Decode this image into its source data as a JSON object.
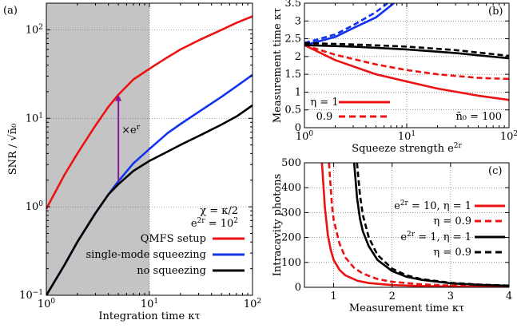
{
  "chart_data": [
    {
      "panel": "(a)",
      "type": "line",
      "xscale": "log",
      "yscale": "log",
      "xlim": [
        1,
        100
      ],
      "ylim": [
        0.1,
        200
      ],
      "xlabel": "Integration time κτ",
      "ylabel": "SNR / √n̄₀",
      "x_ticks": [
        {
          "v": 1,
          "b": "10",
          "e": "0"
        },
        {
          "v": 10,
          "b": "10",
          "e": "1"
        },
        {
          "v": 100,
          "b": "10",
          "e": "2"
        }
      ],
      "y_ticks": [
        {
          "v": 0.1,
          "b": "10",
          "e": "−1"
        },
        {
          "v": 1,
          "b": "10",
          "e": "0"
        },
        {
          "v": 10,
          "b": "10",
          "e": "1"
        },
        {
          "v": 100,
          "b": "10",
          "e": "2"
        }
      ],
      "shaded_region": [
        1,
        10
      ],
      "grid": "dotted",
      "annotations": [
        {
          "text": "χ = κ/2"
        },
        {
          "text": "e^{2r} = 10^2"
        }
      ],
      "arrow": {
        "x": 5,
        "y_from": 1.95,
        "y_to": 18.5,
        "label": "×e^r",
        "color": "#8a1a9b"
      },
      "legend_position": "bottom-right",
      "series": [
        {
          "name": "QMFS setup",
          "color": "#ee1111",
          "x": [
            1,
            1.5,
            2,
            3,
            4,
            5,
            7,
            10,
            15,
            20,
            30,
            50,
            70,
            100
          ],
          "y": [
            0.95,
            2.3,
            4.0,
            8.3,
            13.5,
            18.5,
            27.5,
            36.3,
            49,
            60,
            76,
            100,
            120,
            142
          ]
        },
        {
          "name": "single-mode squeezing",
          "color": "#1133ee",
          "x": [
            1,
            1.5,
            2,
            3,
            4,
            5,
            7,
            10,
            15,
            20,
            30,
            50,
            70,
            100
          ],
          "y": [
            0.1,
            0.22,
            0.4,
            0.85,
            1.38,
            1.95,
            3.1,
            4.5,
            6.8,
            8.6,
            11.8,
            17.5,
            23,
            31
          ]
        },
        {
          "name": "no squeezing",
          "color": "#000000",
          "x": [
            1,
            1.5,
            2,
            3,
            4,
            5,
            7,
            10,
            15,
            20,
            30,
            50,
            70,
            100
          ],
          "y": [
            0.1,
            0.22,
            0.4,
            0.85,
            1.38,
            1.8,
            2.55,
            3.3,
            4.2,
            5.0,
            6.3,
            8.5,
            10.5,
            14
          ]
        }
      ]
    },
    {
      "panel": "(b)",
      "type": "line",
      "xscale": "log",
      "yscale": "linear",
      "xlim": [
        1,
        100
      ],
      "ylim": [
        0,
        3.5
      ],
      "xlabel": "Squeeze strength e^{2r}",
      "ylabel": "Measurement time κτ",
      "x_ticks": [
        {
          "v": 1,
          "b": "10",
          "e": "0"
        },
        {
          "v": 10,
          "b": "10",
          "e": "1"
        },
        {
          "v": 100,
          "b": "10",
          "e": "2"
        }
      ],
      "y_ticks": [
        {
          "v": 0,
          "l": "0"
        },
        {
          "v": 0.5,
          "l": "0.5"
        },
        {
          "v": 1,
          "l": "1"
        },
        {
          "v": 1.5,
          "l": "1.5"
        },
        {
          "v": 2,
          "l": "2"
        },
        {
          "v": 2.5,
          "l": "2.5"
        },
        {
          "v": 3,
          "l": "3"
        },
        {
          "v": 3.5,
          "l": "3.5"
        }
      ],
      "grid": "dotted",
      "annotations": [
        {
          "text": "n̄₀ = 100"
        }
      ],
      "legend_position": "bottom-left",
      "series": [
        {
          "name": "η = 1",
          "color": "#ee1111",
          "dash": "solid",
          "x": [
            1,
            2,
            5,
            10,
            20,
            50,
            100
          ],
          "y": [
            2.32,
            1.9,
            1.5,
            1.3,
            1.1,
            0.9,
            0.78
          ]
        },
        {
          "name": "0.9",
          "color": "#ee1111",
          "dash": "dashed",
          "x": [
            1,
            2,
            5,
            10,
            20,
            50,
            100
          ],
          "y": [
            2.32,
            2.05,
            1.78,
            1.62,
            1.5,
            1.4,
            1.37
          ]
        },
        {
          "color": "#1133ee",
          "dash": "solid",
          "x": [
            1,
            2,
            3,
            5,
            7.5
          ],
          "y": [
            2.32,
            2.55,
            2.8,
            3.1,
            3.5
          ]
        },
        {
          "color": "#1133ee",
          "dash": "dashed",
          "x": [
            1,
            2,
            3,
            5,
            6.5
          ],
          "y": [
            2.38,
            2.62,
            2.88,
            3.25,
            3.5
          ]
        },
        {
          "color": "#000000",
          "dash": "solid",
          "x": [
            1,
            3,
            10,
            30,
            100
          ],
          "y": [
            2.32,
            2.28,
            2.2,
            2.1,
            1.95
          ]
        },
        {
          "color": "#000000",
          "dash": "dashed",
          "x": [
            1,
            3,
            10,
            30,
            100
          ],
          "y": [
            2.38,
            2.34,
            2.28,
            2.18,
            2.02
          ]
        }
      ]
    },
    {
      "panel": "(c)",
      "type": "line",
      "xscale": "linear",
      "yscale": "linear",
      "xlim": [
        0.5,
        4
      ],
      "ylim": [
        0,
        500
      ],
      "xlabel": "Measurement time κτ",
      "ylabel": "Intracavity photons",
      "x_ticks": [
        {
          "v": 1,
          "l": "1"
        },
        {
          "v": 2,
          "l": "2"
        },
        {
          "v": 3,
          "l": "3"
        },
        {
          "v": 4,
          "l": "4"
        }
      ],
      "y_ticks": [
        {
          "v": 0,
          "l": "0"
        },
        {
          "v": 100,
          "l": "100"
        },
        {
          "v": 200,
          "l": "200"
        },
        {
          "v": 300,
          "l": "300"
        },
        {
          "v": 400,
          "l": "400"
        },
        {
          "v": 500,
          "l": "500"
        }
      ],
      "grid": "dotted",
      "legend_position": "right",
      "series": [
        {
          "name": "e^{2r} = 10, η = 1",
          "color": "#ee1111",
          "dash": "solid",
          "x": [
            0.8,
            0.85,
            0.9,
            0.95,
            1.0,
            1.1,
            1.2,
            1.4,
            1.6,
            2.0,
            2.5,
            3.0,
            4.0
          ],
          "y": [
            500,
            320,
            210,
            150,
            110,
            70,
            48,
            27,
            17,
            9,
            5,
            3,
            1.5
          ]
        },
        {
          "name": "η = 0.9",
          "color": "#ee1111",
          "dash": "dashed",
          "x": [
            0.92,
            0.97,
            1.0,
            1.1,
            1.2,
            1.35,
            1.5,
            1.75,
            2.0,
            2.5,
            3.0,
            4.0
          ],
          "y": [
            500,
            330,
            270,
            175,
            120,
            78,
            55,
            33,
            22,
            12,
            7,
            3
          ]
        },
        {
          "name": "e^{2r} = 1, η = 1",
          "color": "#000000",
          "dash": "solid",
          "x": [
            1.35,
            1.4,
            1.45,
            1.5,
            1.6,
            1.75,
            2.0,
            2.25,
            2.5,
            3.0,
            3.5,
            4.0
          ],
          "y": [
            500,
            360,
            275,
            225,
            165,
            110,
            65,
            42,
            30,
            16,
            10,
            6
          ]
        },
        {
          "name": "η = 0.9",
          "color": "#000000",
          "dash": "dashed",
          "x": [
            1.4,
            1.45,
            1.5,
            1.6,
            1.75,
            2.0,
            2.25,
            2.5,
            3.0,
            3.5,
            4.0
          ],
          "y": [
            500,
            370,
            290,
            200,
            130,
            75,
            48,
            33,
            18,
            11,
            7
          ]
        }
      ]
    }
  ]
}
